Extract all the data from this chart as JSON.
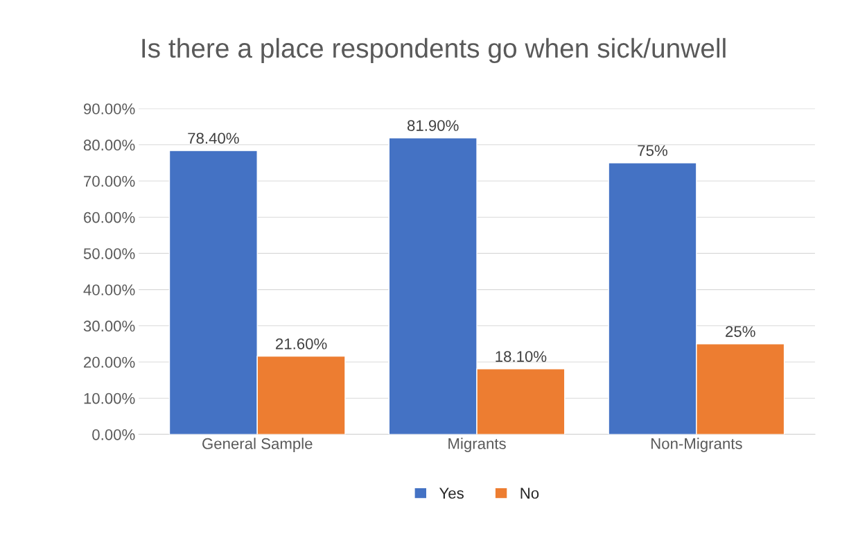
{
  "chart_data": {
    "type": "bar",
    "title": "Is there a place respondents go when sick/unwell",
    "categories": [
      "General Sample",
      "Migrants",
      "Non-Migrants"
    ],
    "series": [
      {
        "name": "Yes",
        "color": "#4472c4",
        "values": [
          78.4,
          81.9,
          75
        ],
        "value_labels": [
          "78.40%",
          "81.90%",
          "75%"
        ]
      },
      {
        "name": "No",
        "color": "#ed7d31",
        "values": [
          21.6,
          18.1,
          25
        ],
        "value_labels": [
          "21.60%",
          "18.10%",
          "25%"
        ]
      }
    ],
    "ylim": [
      0,
      90
    ],
    "yticks": [
      {
        "value": 0,
        "label": "0.00%"
      },
      {
        "value": 10,
        "label": "10.00%"
      },
      {
        "value": 20,
        "label": "20.00%"
      },
      {
        "value": 30,
        "label": "30.00%"
      },
      {
        "value": 40,
        "label": "40.00%"
      },
      {
        "value": 50,
        "label": "50.00%"
      },
      {
        "value": 60,
        "label": "60.00%"
      },
      {
        "value": 70,
        "label": "70.00%"
      },
      {
        "value": 80,
        "label": "80.00%"
      },
      {
        "value": 90,
        "label": "90.00%"
      }
    ],
    "grid": "y",
    "legend": "bottom"
  }
}
